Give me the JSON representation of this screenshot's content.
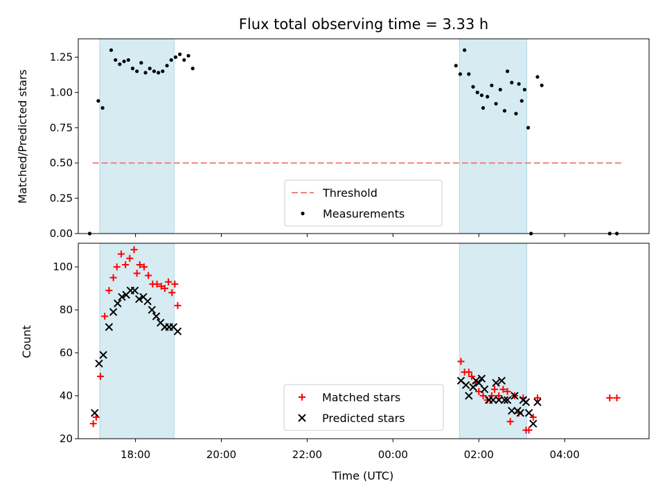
{
  "chart_data": [
    {
      "type": "scatter",
      "title": "Flux total observing time = 3.33 h",
      "xlabel": "",
      "ylabel": "Matched/Predicted stars",
      "ylim": [
        0,
        1.38
      ],
      "yticks": [
        "0.00",
        "0.25",
        "0.50",
        "0.75",
        "1.00",
        "1.25"
      ],
      "shaded_spans_utc": [
        [
          "17:10",
          "18:54"
        ],
        [
          "01:33",
          "03:07"
        ]
      ],
      "threshold": {
        "name": "Threshold",
        "value": 0.5,
        "x_range": [
          "17:00",
          "05:20"
        ],
        "color": "#f08080"
      },
      "series": [
        {
          "name": "Measurements",
          "color": "#000000",
          "marker": "dot",
          "points": [
            [
              "16:56",
              0.0
            ],
            [
              "17:08",
              0.94
            ],
            [
              "17:14",
              0.89
            ],
            [
              "17:26",
              1.3
            ],
            [
              "17:32",
              1.23
            ],
            [
              "17:38",
              1.2
            ],
            [
              "17:44",
              1.22
            ],
            [
              "17:50",
              1.23
            ],
            [
              "17:56",
              1.17
            ],
            [
              "18:02",
              1.15
            ],
            [
              "18:08",
              1.21
            ],
            [
              "18:14",
              1.14
            ],
            [
              "18:20",
              1.17
            ],
            [
              "18:26",
              1.15
            ],
            [
              "18:32",
              1.14
            ],
            [
              "18:38",
              1.15
            ],
            [
              "18:44",
              1.19
            ],
            [
              "18:50",
              1.23
            ],
            [
              "18:56",
              1.25
            ],
            [
              "19:02",
              1.27
            ],
            [
              "19:08",
              1.23
            ],
            [
              "19:14",
              1.26
            ],
            [
              "19:20",
              1.17
            ],
            [
              "01:28",
              1.19
            ],
            [
              "01:34",
              1.13
            ],
            [
              "01:40",
              1.3
            ],
            [
              "01:46",
              1.13
            ],
            [
              "01:52",
              1.04
            ],
            [
              "01:58",
              1.0
            ],
            [
              "02:04",
              0.98
            ],
            [
              "02:06",
              0.89
            ],
            [
              "02:12",
              0.97
            ],
            [
              "02:18",
              1.05
            ],
            [
              "02:24",
              0.92
            ],
            [
              "02:30",
              1.02
            ],
            [
              "02:36",
              0.87
            ],
            [
              "02:40",
              1.15
            ],
            [
              "02:46",
              1.07
            ],
            [
              "02:52",
              0.85
            ],
            [
              "02:56",
              1.06
            ],
            [
              "03:00",
              0.94
            ],
            [
              "03:04",
              1.02
            ],
            [
              "03:09",
              0.75
            ],
            [
              "03:13",
              0.0
            ],
            [
              "03:22",
              1.11
            ],
            [
              "03:28",
              1.05
            ],
            [
              "05:03",
              0.0
            ],
            [
              "05:13",
              0.0
            ]
          ]
        }
      ]
    },
    {
      "type": "scatter",
      "title": "",
      "xlabel": "Time (UTC)",
      "ylabel": "Count",
      "ylim": [
        20,
        111
      ],
      "yticks": [
        "20",
        "40",
        "60",
        "80",
        "100"
      ],
      "xticks": [
        "18:00",
        "20:00",
        "22:00",
        "00:00",
        "02:00",
        "04:00"
      ],
      "shaded_spans_utc": [
        [
          "17:10",
          "18:54"
        ],
        [
          "01:33",
          "03:07"
        ]
      ],
      "series": [
        {
          "name": "Matched stars",
          "color": "#ff0000",
          "marker": "plus",
          "points": [
            [
              "17:01",
              27
            ],
            [
              "17:05",
              30
            ],
            [
              "17:11",
              49
            ],
            [
              "17:17",
              77
            ],
            [
              "17:23",
              89
            ],
            [
              "17:29",
              95
            ],
            [
              "17:34",
              100
            ],
            [
              "17:40",
              106
            ],
            [
              "17:46",
              101
            ],
            [
              "17:52",
              104
            ],
            [
              "17:58",
              108
            ],
            [
              "18:02",
              97
            ],
            [
              "18:06",
              101
            ],
            [
              "18:12",
              100
            ],
            [
              "18:18",
              96
            ],
            [
              "18:24",
              92
            ],
            [
              "18:30",
              92
            ],
            [
              "18:36",
              91
            ],
            [
              "18:41",
              90
            ],
            [
              "18:46",
              93
            ],
            [
              "18:51",
              88
            ],
            [
              "18:55",
              92
            ],
            [
              "18:59",
              82
            ],
            [
              "01:35",
              56
            ],
            [
              "01:40",
              51
            ],
            [
              "01:46",
              51
            ],
            [
              "01:50",
              49
            ],
            [
              "01:56",
              46
            ],
            [
              "02:00",
              42
            ],
            [
              "02:06",
              40
            ],
            [
              "02:12",
              38
            ],
            [
              "02:18",
              40
            ],
            [
              "02:22",
              43
            ],
            [
              "02:28",
              40
            ],
            [
              "02:34",
              43
            ],
            [
              "02:40",
              42
            ],
            [
              "02:44",
              28
            ],
            [
              "02:50",
              40
            ],
            [
              "02:56",
              32
            ],
            [
              "03:02",
              39
            ],
            [
              "03:06",
              24
            ],
            [
              "03:10",
              24
            ],
            [
              "03:16",
              30
            ],
            [
              "03:22",
              39
            ],
            [
              "05:03",
              39
            ],
            [
              "05:13",
              39
            ]
          ]
        },
        {
          "name": "Predicted stars",
          "color": "#000000",
          "marker": "x",
          "points": [
            [
              "17:03",
              32
            ],
            [
              "17:09",
              55
            ],
            [
              "17:15",
              59
            ],
            [
              "17:23",
              72
            ],
            [
              "17:29",
              79
            ],
            [
              "17:35",
              83
            ],
            [
              "17:41",
              86
            ],
            [
              "17:47",
              87
            ],
            [
              "17:53",
              89
            ],
            [
              "17:59",
              89
            ],
            [
              "18:05",
              85
            ],
            [
              "18:11",
              86
            ],
            [
              "18:17",
              84
            ],
            [
              "18:23",
              80
            ],
            [
              "18:29",
              77
            ],
            [
              "18:35",
              74
            ],
            [
              "18:41",
              72
            ],
            [
              "18:47",
              72
            ],
            [
              "18:53",
              72
            ],
            [
              "18:59",
              70
            ],
            [
              "01:35",
              47
            ],
            [
              "01:42",
              45
            ],
            [
              "01:46",
              40
            ],
            [
              "01:52",
              44
            ],
            [
              "01:56",
              47
            ],
            [
              "02:00",
              46
            ],
            [
              "02:04",
              48
            ],
            [
              "02:08",
              43
            ],
            [
              "02:14",
              38
            ],
            [
              "02:20",
              38
            ],
            [
              "02:24",
              46
            ],
            [
              "02:28",
              38
            ],
            [
              "02:32",
              47
            ],
            [
              "02:36",
              38
            ],
            [
              "02:40",
              38
            ],
            [
              "02:46",
              33
            ],
            [
              "02:50",
              40
            ],
            [
              "02:54",
              33
            ],
            [
              "02:58",
              32
            ],
            [
              "03:02",
              38
            ],
            [
              "03:06",
              37
            ],
            [
              "03:10",
              32
            ],
            [
              "03:16",
              27
            ],
            [
              "03:22",
              37
            ]
          ]
        }
      ]
    }
  ]
}
